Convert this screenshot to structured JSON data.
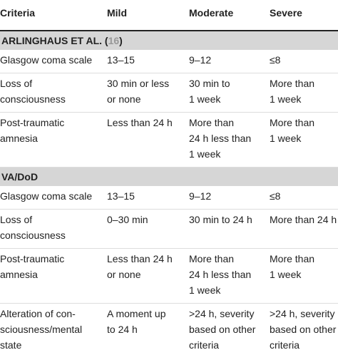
{
  "header": [
    "Criteria",
    "Mild",
    "Moderate",
    "Severe"
  ],
  "sections": [
    {
      "title": "ARLINGHAUS ET AL. (",
      "ref": "16",
      "title_end": ")",
      "rows": [
        [
          [
            "Glasgow coma scale"
          ],
          [
            "13–15"
          ],
          [
            "9–12"
          ],
          [
            "≤8"
          ]
        ],
        [
          [
            "Loss of",
            "consciousness"
          ],
          [
            "30 min or less",
            "or none"
          ],
          [
            "30 min to",
            "1 week"
          ],
          [
            "More than",
            "1 week"
          ]
        ],
        [
          [
            "Post-traumatic",
            "amnesia"
          ],
          [
            "Less than 24 h"
          ],
          [
            "More than",
            "24 h less than",
            "1 week"
          ],
          [
            "More than",
            "1 week"
          ]
        ]
      ]
    },
    {
      "title": "VA/DoD",
      "rows": [
        [
          [
            "Glasgow coma scale"
          ],
          [
            "13–15"
          ],
          [
            "9–12"
          ],
          [
            "≤8"
          ]
        ],
        [
          [
            "Loss of",
            "consciousness"
          ],
          [
            "0–30 min"
          ],
          [
            "30 min to 24 h"
          ],
          [
            "More than 24 h"
          ]
        ],
        [
          [
            "Post-traumatic",
            "amnesia"
          ],
          [
            "Less than 24 h",
            "or none"
          ],
          [
            "More than",
            "24 h less than",
            "1 week"
          ],
          [
            "More than",
            "1 week"
          ]
        ],
        [
          [
            "Alteration of con-",
            "sciousness/mental",
            "state"
          ],
          [
            "A moment up",
            "to 24 h"
          ],
          [
            ">24 h, severity",
            "based on other",
            "criteria"
          ],
          [
            ">24 h, severity",
            "based on other",
            "criteria"
          ]
        ]
      ]
    }
  ]
}
